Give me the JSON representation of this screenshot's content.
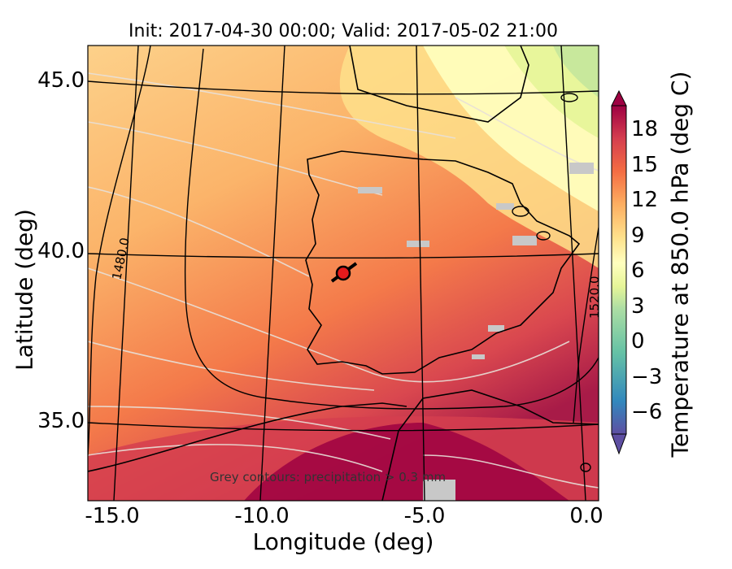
{
  "title": "Init: 2017-04-30 00:00; Valid: 2017-05-02 21:00",
  "x_axis": {
    "label": "Longitude (deg)",
    "ticks": [
      "-15.0",
      "-10.0",
      "-5.0",
      "0.0"
    ]
  },
  "y_axis": {
    "label": "Latitude (deg)",
    "ticks": [
      "45.0",
      "40.0",
      "35.0"
    ]
  },
  "colorbar": {
    "label": "Temperature at 850.0 hPa (deg C)",
    "ticks": [
      "18",
      "15",
      "12",
      "9",
      "6",
      "3",
      "0",
      "−3",
      "−6"
    ],
    "colormap": [
      "#5e4fa2",
      "#3288bd",
      "#66c2a5",
      "#abdda4",
      "#e6f598",
      "#ffffbf",
      "#fee08b",
      "#fdae61",
      "#f46d43",
      "#d53e4f",
      "#9e0142"
    ]
  },
  "contour_labels": [
    "1480.0",
    "1520.0"
  ],
  "annotation": "Grey contours: precipitation > 0.3 mm",
  "marker_color": "#e41a1c",
  "chart_data": {
    "type": "heatmap",
    "variable": "Temperature at 850.0 hPa",
    "units": "deg C",
    "lon_range": [
      -15.8,
      0.1
    ],
    "lat_range": [
      32.8,
      46.0
    ],
    "color_range": [
      -8,
      20
    ],
    "marker": {
      "lon": -7.6,
      "lat": 39.4
    },
    "geopotential_contour_levels": [
      1480.0,
      1520.0
    ]
  }
}
